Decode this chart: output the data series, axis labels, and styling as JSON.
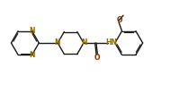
{
  "bg_color": "#ffffff",
  "line_color": "#1a1a1a",
  "n_color": "#8B7000",
  "o_color": "#8B3000",
  "lw": 1.0,
  "fs": 5.5,
  "xlim": [
    0,
    19
  ],
  "ylim": [
    0,
    9.5
  ]
}
